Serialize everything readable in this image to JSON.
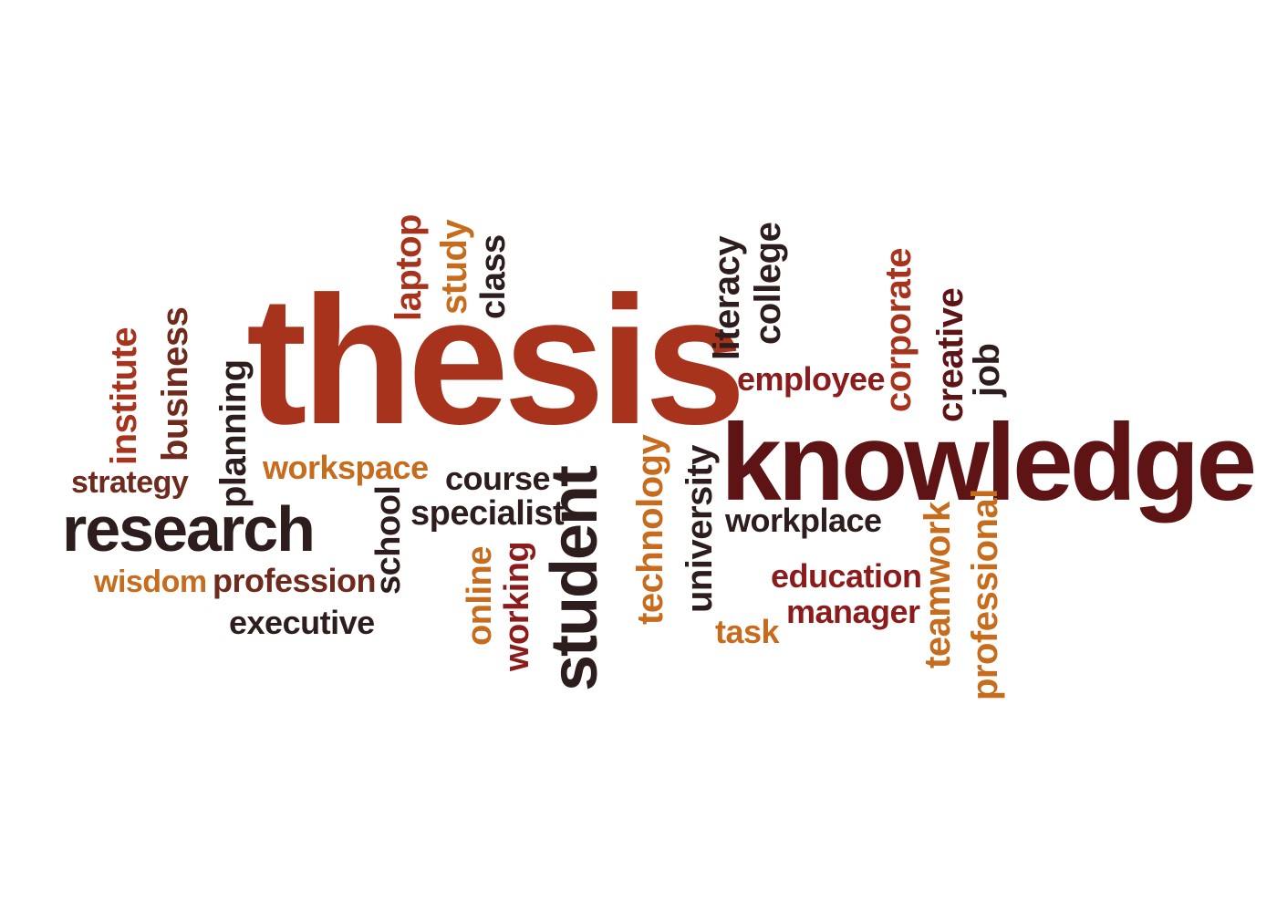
{
  "palette": {
    "rust": "#a8331d",
    "maroon": "#5e1414",
    "dark": "#2d1d1c",
    "orange": "#c66c1c",
    "crimson": "#8c1c1c",
    "brown": "#6e2a1c"
  },
  "words": {
    "thesis": "thesis",
    "knowledge": "knowledge",
    "research": "research",
    "student": "student",
    "laptop": "laptop",
    "study": "study",
    "class": "class",
    "literacy": "literacy",
    "college": "college",
    "corporate": "corporate",
    "creative": "creative",
    "job": "job",
    "employee": "employee",
    "institute": "institute",
    "business": "business",
    "planning": "planning",
    "strategy": "strategy",
    "workspace": "workspace",
    "course": "course",
    "specialist": "specialist",
    "school": "school",
    "technology": "technology",
    "university": "university",
    "workplace": "workplace",
    "wisdom": "wisdom",
    "profession": "profession",
    "executive": "executive",
    "online": "online",
    "working": "working",
    "education": "education",
    "manager": "manager",
    "task": "task",
    "teamwork": "teamwork",
    "professional": "professional"
  }
}
